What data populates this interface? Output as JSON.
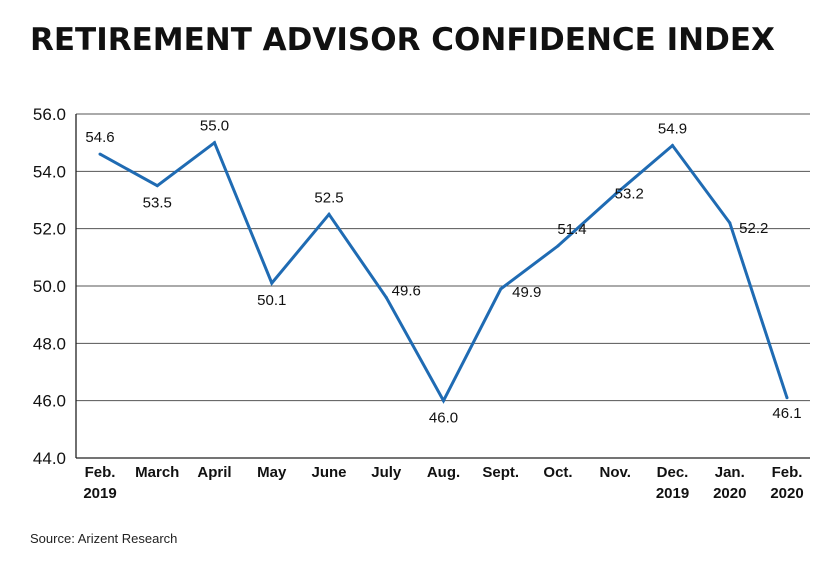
{
  "title": "RETIREMENT ADVISOR CONFIDENCE INDEX",
  "source": "Source: Arizent Research",
  "colors": {
    "line": "#1f6bb3",
    "grid": "#555555",
    "text": "#111111"
  },
  "chart_data": {
    "type": "line",
    "title": "RETIREMENT ADVISOR CONFIDENCE INDEX",
    "categories": [
      [
        "Feb.",
        "2019"
      ],
      [
        "March"
      ],
      [
        "April"
      ],
      [
        "May"
      ],
      [
        "June"
      ],
      [
        "July"
      ],
      [
        "Aug."
      ],
      [
        "Sept."
      ],
      [
        "Oct."
      ],
      [
        "Nov."
      ],
      [
        "Dec.",
        "2019"
      ],
      [
        "Jan.",
        "2020"
      ],
      [
        "Feb.",
        "2020"
      ]
    ],
    "series": [
      {
        "values": [
          54.6,
          53.5,
          55.0,
          50.1,
          52.5,
          49.6,
          46.0,
          49.9,
          51.4,
          53.2,
          54.9,
          52.2,
          46.1
        ]
      }
    ],
    "data_labels": [
      "54.6",
      "53.5",
      "55.0",
      "50.1",
      "52.5",
      "49.6",
      "46.0",
      "49.9",
      "51.4",
      "53.2",
      "54.9",
      "52.2",
      "46.1"
    ],
    "y_ticks": [
      "44.0",
      "46.0",
      "48.0",
      "50.0",
      "52.0",
      "54.0",
      "56.0"
    ],
    "ylim": [
      44,
      56
    ],
    "grid": true,
    "xlabel": "",
    "ylabel": ""
  }
}
